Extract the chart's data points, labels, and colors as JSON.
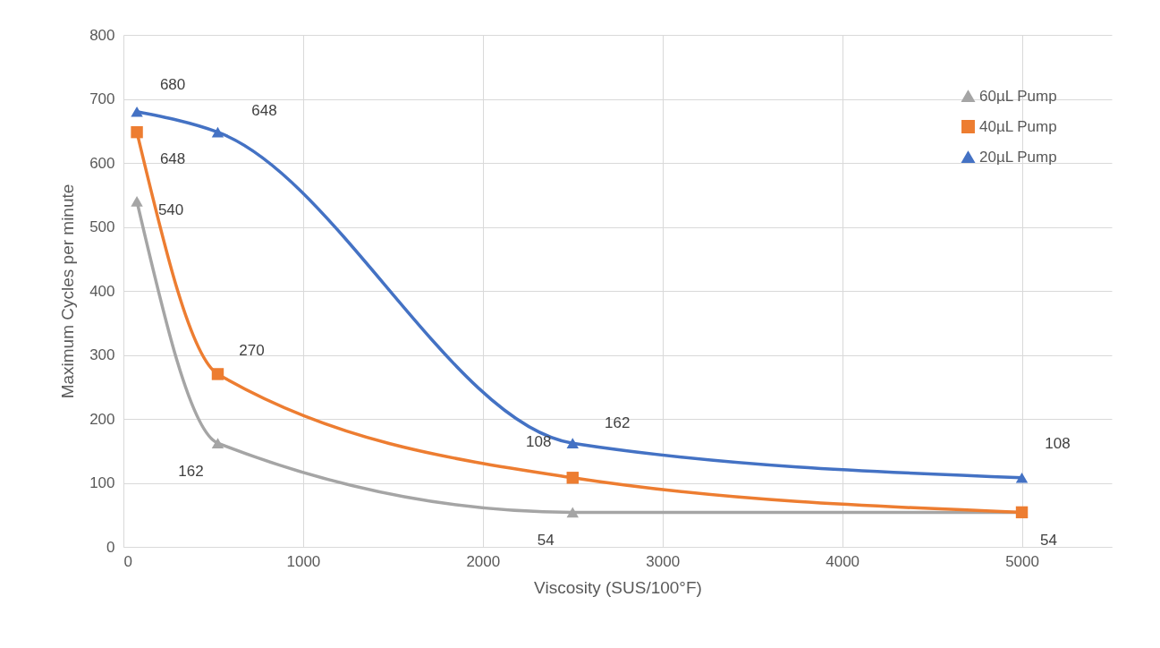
{
  "chart_data": {
    "type": "line",
    "xlabel": "Viscosity (SUS/100°F)",
    "ylabel": "Maximum Cycles per minute",
    "x": [
      75,
      525,
      2500,
      5000
    ],
    "xlim": [
      0,
      5500
    ],
    "xticks": [
      0,
      1000,
      2000,
      3000,
      4000,
      5000
    ],
    "ylim": [
      0,
      800
    ],
    "yticks": [
      0,
      100,
      200,
      300,
      400,
      500,
      600,
      700,
      800
    ],
    "grid": true,
    "legend": "top right",
    "line_style": "solid",
    "series": [
      {
        "name": "60µL Pump",
        "color": "#a5a5a5",
        "marker": "triangle",
        "values": [
          540,
          162,
          54,
          54
        ],
        "value_labels": [
          "540",
          "162",
          "54",
          null
        ]
      },
      {
        "name": "40µL Pump",
        "color": "#ed7d31",
        "marker": "square",
        "values": [
          648,
          270,
          108,
          54
        ],
        "value_labels": [
          "648",
          "270",
          "108",
          "54"
        ]
      },
      {
        "name": "20µL Pump",
        "color": "#4472c4",
        "marker": "triangle",
        "values": [
          680,
          648,
          162,
          108
        ],
        "value_labels": [
          "680",
          "648",
          "162",
          "108"
        ]
      }
    ]
  }
}
